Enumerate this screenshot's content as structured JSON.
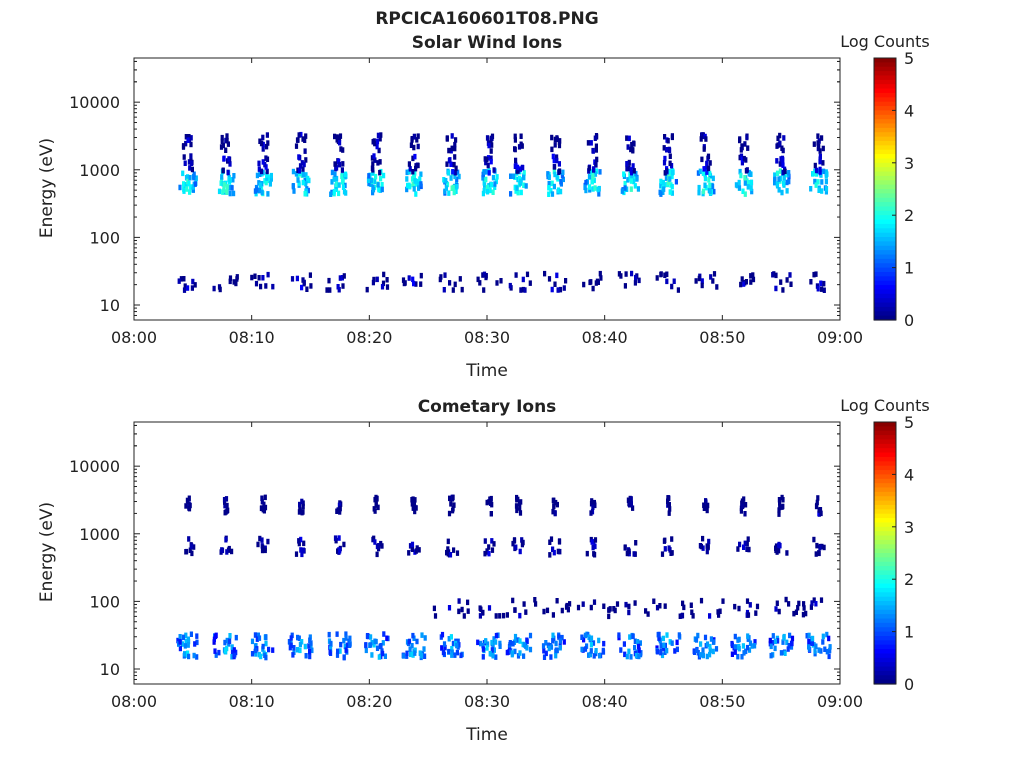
{
  "figure": {
    "title": "RPCICA160601T08.PNG"
  },
  "colorbar": {
    "label": "Log Counts",
    "ticks": [
      "0",
      "1",
      "2",
      "3",
      "4",
      "5"
    ],
    "range": [
      0,
      5
    ],
    "colormap": [
      "#00007f",
      "#0000ff",
      "#007fff",
      "#00ffff",
      "#7fff7f",
      "#ffff00",
      "#ff7f00",
      "#ff0000",
      "#7f0000"
    ]
  },
  "chart_data": [
    {
      "type": "heatmap",
      "title": "Solar Wind Ions",
      "xlabel": "Time",
      "ylabel": "Energy (eV)",
      "xlim": [
        "08:00",
        "09:00"
      ],
      "ylim": [
        6,
        45000
      ],
      "yscale": "log",
      "xticks": [
        "08:00",
        "08:10",
        "08:20",
        "08:30",
        "08:40",
        "08:50",
        "09:00"
      ],
      "yticks": [
        {
          "value": 10,
          "label": "10"
        },
        {
          "value": 100,
          "label": "100"
        },
        {
          "value": 1000,
          "label": "1000"
        },
        {
          "value": 10000,
          "label": "10000"
        }
      ],
      "sweep_times_min": [
        4.6,
        7.8,
        11.0,
        14.2,
        17.4,
        20.6,
        23.8,
        27.0,
        30.2,
        32.7,
        35.8,
        39.0,
        42.2,
        45.4,
        48.6,
        51.8,
        55.0,
        58.2
      ],
      "components": [
        {
          "energy_ev": 650,
          "log_counts": 1.9,
          "spread_min": 0.7
        },
        {
          "energy_ev": 1200,
          "log_counts": 0.5,
          "spread_min": 0.4
        },
        {
          "energy_ev": 2500,
          "log_counts": 0.2,
          "spread_min": 0.4
        },
        {
          "energy_ev": 22,
          "log_counts": 0.25,
          "spread_min": 1.0
        }
      ]
    },
    {
      "type": "heatmap",
      "title": "Cometary Ions",
      "xlabel": "Time",
      "ylabel": "Energy (eV)",
      "xlim": [
        "08:00",
        "09:00"
      ],
      "ylim": [
        6,
        45000
      ],
      "yscale": "log",
      "xticks": [
        "08:00",
        "08:10",
        "08:20",
        "08:30",
        "08:40",
        "08:50",
        "09:00"
      ],
      "yticks": [
        {
          "value": 10,
          "label": "10"
        },
        {
          "value": 100,
          "label": "100"
        },
        {
          "value": 1000,
          "label": "1000"
        },
        {
          "value": 10000,
          "label": "10000"
        }
      ],
      "sweep_times_min": [
        4.6,
        7.8,
        11.0,
        14.2,
        17.4,
        20.6,
        23.8,
        27.0,
        30.2,
        32.7,
        35.8,
        39.0,
        42.2,
        45.4,
        48.6,
        51.8,
        55.0,
        58.2
      ],
      "components": [
        {
          "energy_ev": 22,
          "log_counts": 1.4,
          "spread_min": 1.0
        },
        {
          "energy_ev": 650,
          "log_counts": 0.2,
          "spread_min": 0.5
        },
        {
          "energy_ev": 2600,
          "log_counts": 0.1,
          "spread_min": 0.2
        },
        {
          "energy_ev": 80,
          "log_counts": 0.15,
          "spread_min": 1.5,
          "time_range_min": [
            27,
            60
          ]
        }
      ]
    }
  ]
}
